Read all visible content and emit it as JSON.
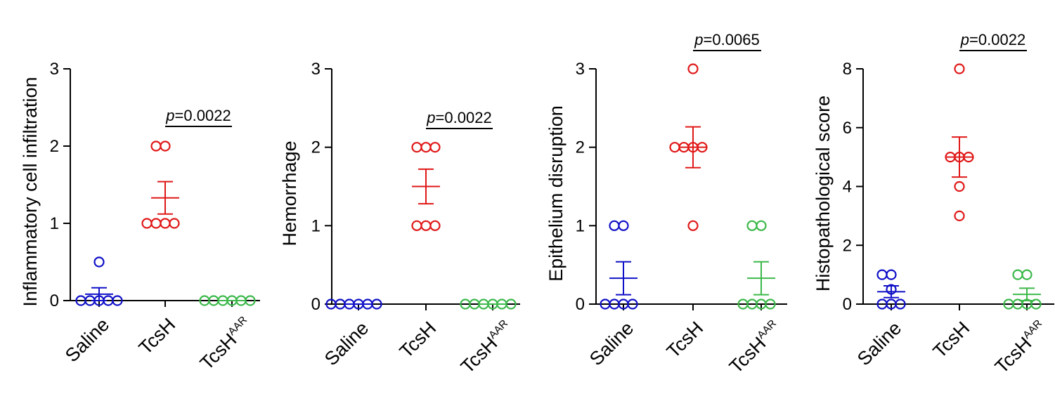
{
  "chart_data": [
    {
      "type": "scatter",
      "ylabel": "Inflammatory cell infiltration",
      "ylim": [
        0,
        3
      ],
      "yticks": [
        0,
        1,
        2,
        3
      ],
      "categories": [
        "Saline",
        "TcsH",
        "TcsH"
      ],
      "category_superscripts": [
        "",
        "",
        "AAR"
      ],
      "series": [
        {
          "category": "Saline",
          "color": "#1010c8",
          "values": [
            0.5,
            0,
            0,
            0,
            0,
            0
          ],
          "mean": 0.083,
          "sem": 0.083
        },
        {
          "category": "TcsH",
          "color": "#e01818",
          "values": [
            2,
            2,
            1,
            1,
            1,
            1
          ],
          "mean": 1.33,
          "sem": 0.21
        },
        {
          "category": "TcsH AAR",
          "color": "#3cb84a",
          "values": [
            0,
            0,
            0,
            0,
            0,
            0
          ],
          "mean": 0,
          "sem": 0
        }
      ],
      "comparison": {
        "from": 1,
        "to": 2,
        "p_italic": "p",
        "p_text": "=0.0022"
      }
    },
    {
      "type": "scatter",
      "ylabel": "Hemorrhage",
      "ylim": [
        0,
        3
      ],
      "yticks": [
        0,
        1,
        2,
        3
      ],
      "categories": [
        "Saline",
        "TcsH",
        "TcsH"
      ],
      "category_superscripts": [
        "",
        "",
        "AAR"
      ],
      "series": [
        {
          "category": "Saline",
          "color": "#1010c8",
          "values": [
            0,
            0,
            0,
            0,
            0,
            0
          ],
          "mean": 0,
          "sem": 0
        },
        {
          "category": "TcsH",
          "color": "#e01818",
          "values": [
            2,
            2,
            2,
            1,
            1,
            1
          ],
          "mean": 1.5,
          "sem": 0.22
        },
        {
          "category": "TcsH AAR",
          "color": "#3cb84a",
          "values": [
            0,
            0,
            0,
            0,
            0,
            0
          ],
          "mean": 0,
          "sem": 0
        }
      ],
      "comparison": {
        "from": 1,
        "to": 2,
        "p_italic": "p",
        "p_text": "=0.0022"
      }
    },
    {
      "type": "scatter",
      "ylabel": "Epithelium disruption",
      "ylim": [
        0,
        3
      ],
      "yticks": [
        0,
        1,
        2,
        3
      ],
      "categories": [
        "Saline",
        "TcsH",
        "TcsH"
      ],
      "category_superscripts": [
        "",
        "",
        "AAR"
      ],
      "series": [
        {
          "category": "Saline",
          "color": "#1010c8",
          "values": [
            1,
            1,
            0,
            0,
            0,
            0
          ],
          "mean": 0.33,
          "sem": 0.21
        },
        {
          "category": "TcsH",
          "color": "#e01818",
          "values": [
            3,
            2,
            2,
            2,
            2,
            1
          ],
          "mean": 2.0,
          "sem": 0.26
        },
        {
          "category": "TcsH AAR",
          "color": "#3cb84a",
          "values": [
            1,
            1,
            0,
            0,
            0,
            0
          ],
          "mean": 0.33,
          "sem": 0.21
        }
      ],
      "comparison": {
        "from": 1,
        "to": 2,
        "p_italic": "p",
        "p_text": "=0.0065"
      }
    },
    {
      "type": "scatter",
      "ylabel": "Histopathological score",
      "ylim": [
        0,
        8
      ],
      "yticks": [
        0,
        2,
        4,
        6,
        8
      ],
      "categories": [
        "Saline",
        "TcsH",
        "TcsH"
      ],
      "category_superscripts": [
        "",
        "",
        "AAR"
      ],
      "series": [
        {
          "category": "Saline",
          "color": "#1010c8",
          "values": [
            1,
            1,
            0.5,
            0,
            0,
            0
          ],
          "mean": 0.42,
          "sem": 0.2
        },
        {
          "category": "TcsH",
          "color": "#e01818",
          "values": [
            8,
            5,
            5,
            5,
            4,
            3
          ],
          "mean": 5.0,
          "sem": 0.68
        },
        {
          "category": "TcsH AAR",
          "color": "#3cb84a",
          "values": [
            1,
            1,
            0,
            0,
            0,
            0
          ],
          "mean": 0.33,
          "sem": 0.21
        }
      ],
      "comparison": {
        "from": 1,
        "to": 2,
        "p_italic": "p",
        "p_text": "=0.0022"
      }
    }
  ]
}
